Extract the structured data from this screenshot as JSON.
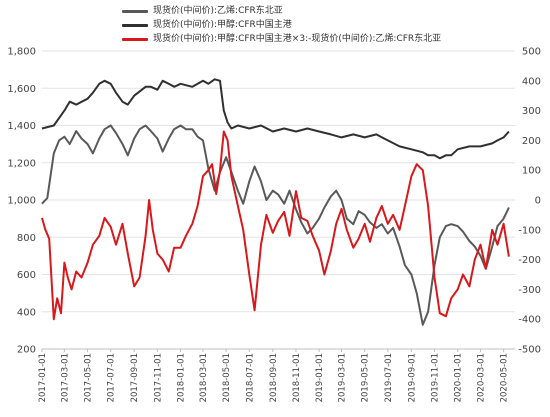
{
  "chart_data": {
    "type": "line",
    "legend": [
      {
        "name": "现货价(中间价):乙烯:CFR东北亚",
        "color": "#595959"
      },
      {
        "name": "现货价(中间价):甲醇:CFR中国主港",
        "color": "#303030"
      },
      {
        "name": "现货价(中间价):甲醇:CFR中国主港×3:-现货价(中间价):乙烯:CFR东北亚",
        "color": "#d7191c"
      }
    ],
    "left_axis": {
      "ylim": [
        200,
        1800
      ],
      "ticks": [
        "200",
        "400",
        "600",
        "800",
        "1,000",
        "1,200",
        "1,400",
        "1,600",
        "1,800"
      ]
    },
    "right_axis": {
      "ylim": [
        -500,
        500
      ],
      "ticks": [
        "-500",
        "-400",
        "-300",
        "-200",
        "-100",
        "0",
        "100",
        "200",
        "300",
        "400",
        "500"
      ]
    },
    "x_ticks": [
      "2017-01-01",
      "2017-03-01",
      "2017-05-01",
      "2017-07-01",
      "2017-09-01",
      "2017-11-01",
      "2018-01-01",
      "2018-03-01",
      "2018-05-01",
      "2018-07-01",
      "2018-09-01",
      "2018-11-01",
      "2019-01-01",
      "2019-03-01",
      "2019-05-01",
      "2019-07-01",
      "2019-09-01",
      "2019-11-01",
      "2020-01-01",
      "2020-03-01",
      "2020-05-01"
    ],
    "grid": true,
    "legend_placement": "top-left",
    "series": [
      {
        "name": "现货价(中间价):乙烯:CFR东北亚",
        "axis": "left",
        "color": "#595959",
        "width": 2,
        "points": [
          [
            "2017-01-01",
            980
          ],
          [
            "2017-01-15",
            1010
          ],
          [
            "2017-02-01",
            1250
          ],
          [
            "2017-02-15",
            1320
          ],
          [
            "2017-03-01",
            1340
          ],
          [
            "2017-03-15",
            1300
          ],
          [
            "2017-04-01",
            1370
          ],
          [
            "2017-04-15",
            1330
          ],
          [
            "2017-05-01",
            1300
          ],
          [
            "2017-05-15",
            1250
          ],
          [
            "2017-06-01",
            1330
          ],
          [
            "2017-06-15",
            1380
          ],
          [
            "2017-07-01",
            1400
          ],
          [
            "2017-07-15",
            1360
          ],
          [
            "2017-08-01",
            1300
          ],
          [
            "2017-08-15",
            1240
          ],
          [
            "2017-09-01",
            1330
          ],
          [
            "2017-09-15",
            1380
          ],
          [
            "2017-10-01",
            1400
          ],
          [
            "2017-10-15",
            1370
          ],
          [
            "2017-11-01",
            1330
          ],
          [
            "2017-11-15",
            1260
          ],
          [
            "2017-12-01",
            1330
          ],
          [
            "2017-12-15",
            1380
          ],
          [
            "2018-01-01",
            1400
          ],
          [
            "2018-01-15",
            1380
          ],
          [
            "2018-02-01",
            1380
          ],
          [
            "2018-02-15",
            1340
          ],
          [
            "2018-03-01",
            1320
          ],
          [
            "2018-03-15",
            1170
          ],
          [
            "2018-04-01",
            1050
          ],
          [
            "2018-04-15",
            1150
          ],
          [
            "2018-05-01",
            1230
          ],
          [
            "2018-05-15",
            1150
          ],
          [
            "2018-06-01",
            1050
          ],
          [
            "2018-06-15",
            980
          ],
          [
            "2018-07-01",
            1100
          ],
          [
            "2018-07-15",
            1180
          ],
          [
            "2018-08-01",
            1100
          ],
          [
            "2018-08-15",
            1000
          ],
          [
            "2018-09-01",
            1050
          ],
          [
            "2018-09-15",
            1030
          ],
          [
            "2018-10-01",
            980
          ],
          [
            "2018-10-15",
            1050
          ],
          [
            "2018-11-01",
            950
          ],
          [
            "2018-11-15",
            880
          ],
          [
            "2018-12-01",
            820
          ],
          [
            "2018-12-15",
            850
          ],
          [
            "2019-01-01",
            900
          ],
          [
            "2019-01-15",
            960
          ],
          [
            "2019-02-01",
            1020
          ],
          [
            "2019-02-15",
            1050
          ],
          [
            "2019-03-01",
            1000
          ],
          [
            "2019-03-15",
            900
          ],
          [
            "2019-04-01",
            870
          ],
          [
            "2019-04-15",
            940
          ],
          [
            "2019-05-01",
            920
          ],
          [
            "2019-05-15",
            880
          ],
          [
            "2019-06-01",
            850
          ],
          [
            "2019-06-15",
            870
          ],
          [
            "2019-07-01",
            820
          ],
          [
            "2019-07-15",
            850
          ],
          [
            "2019-08-01",
            750
          ],
          [
            "2019-08-15",
            650
          ],
          [
            "2019-09-01",
            600
          ],
          [
            "2019-09-15",
            500
          ],
          [
            "2019-10-01",
            330
          ],
          [
            "2019-10-15",
            400
          ],
          [
            "2019-11-01",
            650
          ],
          [
            "2019-11-15",
            800
          ],
          [
            "2019-12-01",
            860
          ],
          [
            "2019-12-15",
            870
          ],
          [
            "2020-01-01",
            860
          ],
          [
            "2020-01-15",
            830
          ],
          [
            "2020-02-01",
            780
          ],
          [
            "2020-02-15",
            750
          ],
          [
            "2020-03-01",
            700
          ],
          [
            "2020-03-15",
            630
          ],
          [
            "2020-04-01",
            750
          ],
          [
            "2020-04-15",
            860
          ],
          [
            "2020-05-01",
            900
          ],
          [
            "2020-05-15",
            960
          ]
        ]
      },
      {
        "name": "现货价(中间价):甲醇:CFR中国主港",
        "axis": "right",
        "color": "#303030",
        "width": 2,
        "points": [
          [
            "2017-01-01",
            240
          ],
          [
            "2017-02-01",
            250
          ],
          [
            "2017-03-01",
            300
          ],
          [
            "2017-03-15",
            330
          ],
          [
            "2017-04-01",
            320
          ],
          [
            "2017-05-01",
            340
          ],
          [
            "2017-05-15",
            360
          ],
          [
            "2017-06-01",
            390
          ],
          [
            "2017-06-15",
            400
          ],
          [
            "2017-07-01",
            390
          ],
          [
            "2017-07-15",
            360
          ],
          [
            "2017-08-01",
            330
          ],
          [
            "2017-08-15",
            320
          ],
          [
            "2017-09-01",
            350
          ],
          [
            "2017-10-01",
            380
          ],
          [
            "2017-10-15",
            380
          ],
          [
            "2017-11-01",
            370
          ],
          [
            "2017-11-15",
            400
          ],
          [
            "2017-12-01",
            390
          ],
          [
            "2017-12-15",
            380
          ],
          [
            "2018-01-01",
            390
          ],
          [
            "2018-02-01",
            380
          ],
          [
            "2018-03-01",
            400
          ],
          [
            "2018-03-15",
            390
          ],
          [
            "2018-04-01",
            405
          ],
          [
            "2018-04-15",
            400
          ],
          [
            "2018-04-25",
            300
          ],
          [
            "2018-05-05",
            260
          ],
          [
            "2018-05-15",
            240
          ],
          [
            "2018-06-01",
            250
          ],
          [
            "2018-07-01",
            240
          ],
          [
            "2018-08-01",
            250
          ],
          [
            "2018-09-01",
            230
          ],
          [
            "2018-10-01",
            240
          ],
          [
            "2018-11-01",
            230
          ],
          [
            "2018-12-01",
            240
          ],
          [
            "2019-01-01",
            230
          ],
          [
            "2019-02-01",
            220
          ],
          [
            "2019-03-01",
            210
          ],
          [
            "2019-04-01",
            220
          ],
          [
            "2019-05-01",
            210
          ],
          [
            "2019-06-01",
            220
          ],
          [
            "2019-07-01",
            200
          ],
          [
            "2019-08-01",
            180
          ],
          [
            "2019-09-01",
            170
          ],
          [
            "2019-10-01",
            160
          ],
          [
            "2019-10-15",
            150
          ],
          [
            "2019-11-01",
            150
          ],
          [
            "2019-11-15",
            140
          ],
          [
            "2019-12-01",
            150
          ],
          [
            "2019-12-15",
            150
          ],
          [
            "2020-01-01",
            170
          ],
          [
            "2020-02-01",
            180
          ],
          [
            "2020-03-01",
            180
          ],
          [
            "2020-04-01",
            190
          ],
          [
            "2020-04-15",
            200
          ],
          [
            "2020-05-01",
            210
          ],
          [
            "2020-05-15",
            230
          ]
        ]
      },
      {
        "name": "现货价(中间价):甲醇:CFR中国主港×3:-现货价(中间价):乙烯:CFR东北亚",
        "axis": "right",
        "color": "#d7191c",
        "width": 2,
        "points": [
          [
            "2017-01-01",
            -60
          ],
          [
            "2017-01-10",
            -100
          ],
          [
            "2017-01-20",
            -130
          ],
          [
            "2017-02-01",
            -400
          ],
          [
            "2017-02-10",
            -330
          ],
          [
            "2017-02-20",
            -380
          ],
          [
            "2017-03-01",
            -210
          ],
          [
            "2017-03-10",
            -260
          ],
          [
            "2017-03-20",
            -300
          ],
          [
            "2017-04-01",
            -240
          ],
          [
            "2017-04-15",
            -260
          ],
          [
            "2017-05-01",
            -210
          ],
          [
            "2017-05-15",
            -150
          ],
          [
            "2017-06-01",
            -120
          ],
          [
            "2017-06-15",
            -60
          ],
          [
            "2017-07-01",
            -90
          ],
          [
            "2017-07-15",
            -150
          ],
          [
            "2017-08-01",
            -80
          ],
          [
            "2017-08-15",
            -180
          ],
          [
            "2017-09-01",
            -290
          ],
          [
            "2017-09-15",
            -260
          ],
          [
            "2017-10-01",
            -120
          ],
          [
            "2017-10-10",
            0
          ],
          [
            "2017-10-20",
            -100
          ],
          [
            "2017-11-01",
            -180
          ],
          [
            "2017-11-15",
            -200
          ],
          [
            "2017-12-01",
            -240
          ],
          [
            "2017-12-15",
            -160
          ],
          [
            "2018-01-01",
            -160
          ],
          [
            "2018-01-15",
            -120
          ],
          [
            "2018-02-01",
            -80
          ],
          [
            "2018-02-15",
            -20
          ],
          [
            "2018-03-01",
            80
          ],
          [
            "2018-03-15",
            100
          ],
          [
            "2018-03-25",
            120
          ],
          [
            "2018-04-05",
            20
          ],
          [
            "2018-04-15",
            100
          ],
          [
            "2018-04-25",
            230
          ],
          [
            "2018-05-05",
            200
          ],
          [
            "2018-05-15",
            80
          ],
          [
            "2018-06-01",
            -20
          ],
          [
            "2018-06-15",
            -100
          ],
          [
            "2018-07-01",
            -250
          ],
          [
            "2018-07-15",
            -370
          ],
          [
            "2018-08-01",
            -150
          ],
          [
            "2018-08-15",
            -50
          ],
          [
            "2018-09-01",
            -110
          ],
          [
            "2018-09-15",
            -70
          ],
          [
            "2018-10-01",
            -40
          ],
          [
            "2018-10-15",
            -120
          ],
          [
            "2018-11-01",
            30
          ],
          [
            "2018-11-15",
            -60
          ],
          [
            "2018-12-01",
            -70
          ],
          [
            "2018-12-15",
            -120
          ],
          [
            "2019-01-01",
            -170
          ],
          [
            "2019-01-15",
            -250
          ],
          [
            "2019-02-01",
            -170
          ],
          [
            "2019-02-15",
            -80
          ],
          [
            "2019-03-01",
            -30
          ],
          [
            "2019-03-15",
            -100
          ],
          [
            "2019-04-01",
            -160
          ],
          [
            "2019-04-15",
            -130
          ],
          [
            "2019-05-01",
            -80
          ],
          [
            "2019-05-15",
            -140
          ],
          [
            "2019-06-01",
            -60
          ],
          [
            "2019-06-15",
            -20
          ],
          [
            "2019-07-01",
            -80
          ],
          [
            "2019-07-15",
            -50
          ],
          [
            "2019-08-01",
            -100
          ],
          [
            "2019-08-15",
            -20
          ],
          [
            "2019-09-01",
            80
          ],
          [
            "2019-09-15",
            120
          ],
          [
            "2019-10-01",
            100
          ],
          [
            "2019-10-15",
            -20
          ],
          [
            "2019-11-01",
            -260
          ],
          [
            "2019-11-15",
            -380
          ],
          [
            "2019-12-01",
            -390
          ],
          [
            "2019-12-15",
            -330
          ],
          [
            "2020-01-01",
            -300
          ],
          [
            "2020-01-15",
            -250
          ],
          [
            "2020-02-01",
            -290
          ],
          [
            "2020-02-15",
            -200
          ],
          [
            "2020-03-01",
            -150
          ],
          [
            "2020-03-15",
            -230
          ],
          [
            "2020-04-01",
            -100
          ],
          [
            "2020-04-15",
            -150
          ],
          [
            "2020-05-01",
            -80
          ],
          [
            "2020-05-15",
            -190
          ]
        ]
      }
    ]
  }
}
